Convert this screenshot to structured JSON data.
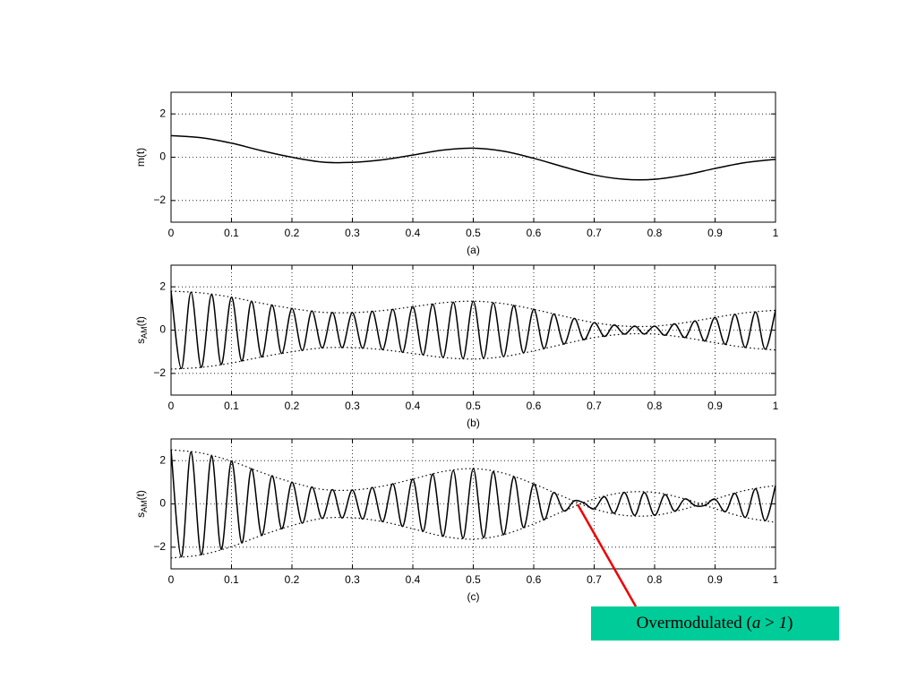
{
  "chart_data": [
    {
      "type": "line",
      "ylabel": "m(t)",
      "xlabel": "(a)",
      "xlim": [
        0,
        1
      ],
      "ylim": [
        -3,
        3
      ],
      "xticks": [
        0,
        0.1,
        0.2,
        0.3,
        0.4,
        0.5,
        0.6,
        0.7,
        0.8,
        0.9,
        1
      ],
      "yticks": [
        {
          "value": -2,
          "label": "−2"
        },
        0,
        2
      ],
      "grid": true,
      "x": [
        0,
        0.05,
        0.1,
        0.15,
        0.2,
        0.25,
        0.3,
        0.35,
        0.4,
        0.45,
        0.5,
        0.55,
        0.6,
        0.65,
        0.7,
        0.75,
        0.8,
        0.85,
        0.9,
        0.95,
        1
      ],
      "series": [
        {
          "color": "#000000",
          "style": "solid",
          "values": [
            1.0,
            0.9,
            0.65,
            0.3,
            0.0,
            -0.22,
            -0.24,
            -0.12,
            0.1,
            0.33,
            0.42,
            0.28,
            -0.05,
            -0.45,
            -0.82,
            -1.02,
            -1.02,
            -0.82,
            -0.52,
            -0.25,
            -0.1
          ]
        }
      ]
    },
    {
      "type": "line",
      "ylabel": {
        "base": "s",
        "sub": "AM",
        "tail": "(t)"
      },
      "xlabel": "(b)",
      "xlim": [
        0,
        1
      ],
      "ylim": [
        -3,
        3
      ],
      "xticks": [
        0,
        0.1,
        0.2,
        0.3,
        0.4,
        0.5,
        0.6,
        0.7,
        0.8,
        0.9,
        1
      ],
      "yticks": [
        {
          "value": -2,
          "label": "−2"
        },
        0,
        2
      ],
      "grid": true,
      "x": [
        0,
        0.05,
        0.1,
        0.15,
        0.2,
        0.25,
        0.3,
        0.35,
        0.4,
        0.45,
        0.5,
        0.55,
        0.6,
        0.65,
        0.7,
        0.75,
        0.8,
        0.85,
        0.9,
        0.95,
        1
      ],
      "series": [
        {
          "color": "#000000",
          "style": "solid",
          "x": [
            0,
            0.017,
            0.033,
            0.05,
            0.067,
            0.083,
            0.1,
            0.117,
            0.133,
            0.15,
            0.167,
            0.183,
            0.2,
            0.217,
            0.233,
            0.25,
            0.267,
            0.283,
            0.3,
            0.317,
            0.333,
            0.35,
            0.367,
            0.383,
            0.4,
            0.417,
            0.433,
            0.45,
            0.467,
            0.483,
            0.5,
            0.517,
            0.533,
            0.55,
            0.567,
            0.583,
            0.6,
            0.617,
            0.633,
            0.65,
            0.667,
            0.683,
            0.7,
            0.717,
            0.733,
            0.75,
            0.767,
            0.783,
            0.8,
            0.817,
            0.833,
            0.85,
            0.867,
            0.883,
            0.9,
            0.917,
            0.933,
            0.95,
            0.967,
            0.983,
            1
          ],
          "values": [
            1.8,
            -1.774,
            1.746,
            -1.72,
            1.654,
            -1.586,
            1.52,
            -1.426,
            1.334,
            -1.24,
            1.16,
            -1.08,
            1.0,
            -0.942,
            0.882,
            -0.824,
            0.818,
            -0.814,
            0.808,
            -0.84,
            0.872,
            -0.904,
            0.962,
            -1.022,
            1.08,
            -1.142,
            1.202,
            -1.264,
            1.288,
            -1.312,
            1.336,
            -1.298,
            1.262,
            -1.224,
            1.136,
            -1.048,
            0.96,
            -0.854,
            0.746,
            -0.64,
            0.542,
            -0.442,
            0.344,
            -0.29,
            0.238,
            -0.184,
            0.184,
            -0.184,
            0.184,
            -0.238,
            0.29,
            -0.344,
            0.424,
            -0.504,
            0.584,
            -0.656,
            0.728,
            -0.8,
            0.84,
            -0.88,
            0.92
          ]
        },
        {
          "color": "#000000",
          "style": "dotted",
          "values": [
            1.8,
            1.72,
            1.52,
            1.24,
            1.0,
            0.824,
            0.808,
            0.904,
            1.08,
            1.264,
            1.336,
            1.224,
            0.96,
            0.64,
            0.344,
            0.184,
            0.184,
            0.344,
            0.584,
            0.8,
            0.92
          ]
        },
        {
          "color": "#000000",
          "style": "dotted",
          "values": [
            -1.8,
            -1.72,
            -1.52,
            -1.24,
            -1.0,
            -0.824,
            -0.808,
            -0.904,
            -1.08,
            -1.264,
            -1.336,
            -1.224,
            -0.96,
            -0.64,
            -0.344,
            -0.184,
            -0.184,
            -0.344,
            -0.584,
            -0.8,
            -0.92
          ]
        }
      ]
    },
    {
      "type": "line",
      "ylabel": {
        "base": "s",
        "sub": "AM",
        "tail": "(t)"
      },
      "xlabel": "(c)",
      "xlim": [
        0,
        1
      ],
      "ylim": [
        -3,
        3
      ],
      "xticks": [
        0,
        0.1,
        0.2,
        0.3,
        0.4,
        0.5,
        0.6,
        0.7,
        0.8,
        0.9,
        1
      ],
      "yticks": [
        {
          "value": -2,
          "label": "−2"
        },
        0,
        2
      ],
      "grid": true,
      "x": [
        0,
        0.05,
        0.1,
        0.15,
        0.2,
        0.25,
        0.3,
        0.35,
        0.4,
        0.45,
        0.5,
        0.55,
        0.6,
        0.65,
        0.7,
        0.75,
        0.8,
        0.85,
        0.9,
        0.95,
        1
      ],
      "series": [
        {
          "color": "#000000",
          "style": "solid",
          "x": [
            0,
            0.017,
            0.033,
            0.05,
            0.067,
            0.083,
            0.1,
            0.117,
            0.133,
            0.15,
            0.167,
            0.183,
            0.2,
            0.217,
            0.233,
            0.25,
            0.267,
            0.283,
            0.3,
            0.317,
            0.333,
            0.35,
            0.367,
            0.383,
            0.4,
            0.417,
            0.433,
            0.45,
            0.467,
            0.483,
            0.5,
            0.517,
            0.533,
            0.55,
            0.567,
            0.583,
            0.6,
            0.617,
            0.633,
            0.65,
            0.667,
            0.683,
            0.7,
            0.717,
            0.733,
            0.75,
            0.767,
            0.783,
            0.8,
            0.817,
            0.833,
            0.85,
            0.867,
            0.883,
            0.9,
            0.917,
            0.933,
            0.95,
            0.967,
            0.983,
            1
          ],
          "values": [
            2.5,
            -2.45,
            2.4,
            -2.35,
            2.225,
            -2.1,
            1.975,
            -1.8,
            1.625,
            -1.45,
            1.3,
            -1.15,
            1.0,
            -0.89,
            0.78,
            -0.67,
            0.66,
            -0.65,
            0.64,
            -0.7,
            0.76,
            -0.82,
            0.93,
            -1.04,
            1.15,
            -1.265,
            1.38,
            -1.495,
            1.54,
            -1.585,
            1.63,
            -1.56,
            1.49,
            -1.42,
            1.255,
            -1.09,
            0.925,
            -0.725,
            0.525,
            -0.325,
            0.14,
            0.045,
            -0.23,
            0.33,
            -0.43,
            0.53,
            -0.53,
            0.53,
            -0.53,
            0.43,
            -0.33,
            0.23,
            -0.08,
            -0.07,
            0.22,
            -0.355,
            0.49,
            -0.625,
            0.7,
            -0.775,
            0.85
          ]
        },
        {
          "color": "#000000",
          "style": "dotted",
          "values": [
            2.5,
            2.35,
            1.975,
            1.45,
            1.0,
            0.67,
            0.64,
            0.82,
            1.15,
            1.495,
            1.63,
            1.42,
            0.925,
            0.325,
            -0.23,
            -0.53,
            -0.53,
            -0.23,
            0.22,
            0.625,
            0.85
          ]
        },
        {
          "color": "#000000",
          "style": "dotted",
          "values": [
            -2.5,
            -2.35,
            -1.975,
            -1.45,
            -1.0,
            -0.67,
            -0.64,
            -0.82,
            -1.15,
            -1.495,
            -1.63,
            -1.42,
            -0.925,
            -0.325,
            0.23,
            0.53,
            0.53,
            0.23,
            -0.22,
            -0.625,
            -0.85
          ]
        }
      ],
      "annotation": {
        "parts": [
          "Overmodulated (",
          "a",
          " > ",
          "1",
          ")"
        ],
        "color": "#00cc99",
        "arrow_color": "#ee0000"
      }
    }
  ]
}
